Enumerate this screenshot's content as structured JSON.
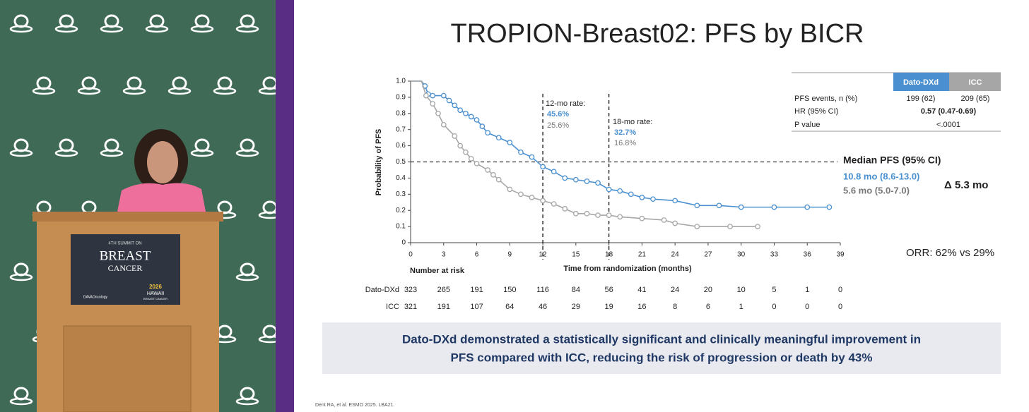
{
  "slide": {
    "title": "TROPION-Breast02: PFS by BICR",
    "footnote": "Dent RA, et al. ESMO 2025. LBA21.",
    "summary": [
      "Dato-DXd demonstrated a statistically significant and clinically meaningful improvement in",
      "PFS compared with ICC, reducing the risk of progression or death by 43%"
    ]
  },
  "podium": {
    "lines": [
      "4TH SUMMIT ON",
      "BREAST",
      "CANCER"
    ],
    "sponsor": "DAVAOncology",
    "event": [
      "2026",
      "HAWAII",
      "BREAST CANCER"
    ]
  },
  "table": {
    "header": [
      "Dato-DXd",
      "ICC"
    ],
    "rows": [
      [
        "PFS events, n (%)",
        "199 (62)",
        "209 (65)"
      ],
      [
        "HR (95% CI)",
        "0.57 (0.47-0.69)"
      ],
      [
        "P value",
        "<.0001"
      ]
    ]
  },
  "chart_data": {
    "type": "line",
    "xlabel": "Time from randomization (months)",
    "ylabel": "Probability of PFS",
    "xlim": [
      0,
      39
    ],
    "ylim": [
      0,
      1
    ],
    "xticks": [
      0,
      3,
      6,
      9,
      12,
      15,
      18,
      21,
      24,
      27,
      30,
      33,
      36,
      39
    ],
    "yticks": [
      0,
      0.1,
      0.2,
      0.3,
      0.4,
      0.5,
      0.6,
      0.7,
      0.8,
      0.9,
      {
        "value": 1,
        "label": "1.0"
      }
    ],
    "vlines": [
      12,
      18
    ],
    "hline": 0.5,
    "series": [
      {
        "name": "Dato-DXd",
        "color": "#4a90d0",
        "x": [
          0,
          1,
          1.3,
          1.6,
          2,
          3,
          3.5,
          4,
          4.5,
          5,
          5.5,
          6,
          6.5,
          7,
          8,
          9,
          10,
          11,
          12,
          13,
          14,
          15,
          16,
          17,
          18,
          19,
          20,
          21,
          22,
          24,
          26,
          28,
          30,
          33,
          36,
          38
        ],
        "values": [
          1,
          1,
          0.97,
          0.92,
          0.91,
          0.91,
          0.88,
          0.85,
          0.82,
          0.8,
          0.78,
          0.76,
          0.72,
          0.68,
          0.65,
          0.62,
          0.56,
          0.53,
          0.47,
          0.44,
          0.4,
          0.39,
          0.38,
          0.37,
          0.33,
          0.32,
          0.3,
          0.28,
          0.27,
          0.26,
          0.23,
          0.23,
          0.22,
          0.22,
          0.22,
          0.22
        ]
      },
      {
        "name": "ICC",
        "color": "#a6a6a6",
        "x": [
          0,
          1,
          1.4,
          2,
          2.5,
          3,
          4,
          4.5,
          5,
          5.5,
          6,
          7,
          7.5,
          8,
          9,
          10,
          11,
          12,
          13,
          14,
          15,
          16,
          17,
          18,
          19,
          21,
          23,
          24,
          26,
          29,
          31.5
        ],
        "values": [
          1,
          1,
          0.91,
          0.86,
          0.8,
          0.73,
          0.66,
          0.6,
          0.56,
          0.52,
          0.49,
          0.45,
          0.42,
          0.39,
          0.33,
          0.3,
          0.28,
          0.26,
          0.24,
          0.21,
          0.18,
          0.18,
          0.17,
          0.17,
          0.16,
          0.15,
          0.14,
          0.12,
          0.1,
          0.1,
          0.1
        ]
      }
    ],
    "annotations": {
      "rate12": [
        "12-mo rate:",
        "45.6%",
        "25.6%"
      ],
      "rate18": [
        "18-mo rate:",
        "32.7%",
        "16.8%"
      ],
      "median": [
        "Median PFS (95% CI)",
        "10.8 mo (8.6-13.0)",
        "5.6 mo (5.0-7.0)"
      ],
      "delta": "Δ 5.3 mo",
      "orr": "ORR: 62% vs 29%"
    },
    "risk": {
      "title": "Number at risk",
      "rows": [
        {
          "name": "Dato-DXd",
          "values": [
            323,
            265,
            191,
            150,
            116,
            84,
            56,
            41,
            24,
            20,
            10,
            5,
            1,
            0
          ]
        },
        {
          "name": "ICC",
          "values": [
            321,
            191,
            107,
            64,
            46,
            29,
            19,
            16,
            8,
            6,
            1,
            0,
            0,
            0
          ]
        }
      ]
    }
  }
}
